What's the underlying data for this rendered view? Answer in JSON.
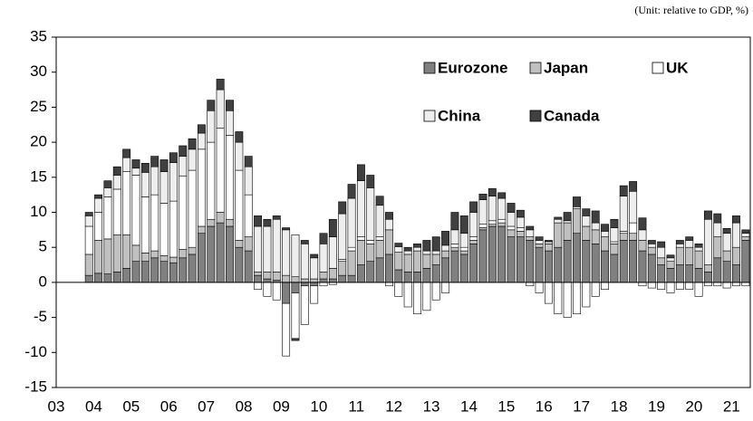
{
  "chart_data": {
    "type": "stacked-bar",
    "unit_note": "(Unit: relative to GDP, %)",
    "categories": [
      null,
      null,
      null,
      null,
      "04",
      null,
      null,
      null,
      "05",
      null,
      null,
      null,
      "06",
      null,
      null,
      null,
      "07",
      null,
      null,
      null,
      "08",
      null,
      null,
      null,
      "09",
      null,
      null,
      null,
      "10",
      null,
      null,
      null,
      "11",
      null,
      null,
      null,
      "12",
      null,
      null,
      null,
      "13",
      null,
      null,
      null,
      "14",
      null,
      null,
      null,
      "15",
      null,
      null,
      null,
      "16",
      null,
      null,
      null,
      "17",
      null,
      null,
      null,
      "18",
      null,
      null,
      null,
      "19",
      null,
      null,
      null,
      "20",
      null,
      null,
      null,
      "21",
      null
    ],
    "x_first_label": "03",
    "series": [
      {
        "name": "Eurozone",
        "color": "#808080",
        "values": [
          null,
          null,
          null,
          1,
          1.3,
          1.2,
          1.5,
          2,
          3,
          3,
          3.5,
          3,
          2.8,
          3.5,
          4,
          7,
          8,
          8.5,
          8,
          5,
          4.5,
          1,
          0.5,
          0.3,
          -3,
          -1.5,
          -0.5,
          -0.5,
          0.5,
          0.5,
          1,
          1,
          2.5,
          3,
          3.5,
          4,
          1.8,
          1.5,
          1.5,
          2,
          2.5,
          3.5,
          4.5,
          4,
          5.5,
          7.5,
          8,
          8,
          6.5,
          6.5,
          6,
          5,
          4.5,
          5,
          6,
          7,
          6,
          5.5,
          4.5,
          4,
          6,
          6,
          4.5,
          4,
          2.5,
          2,
          2.5,
          2.5,
          2,
          1.5,
          3.5,
          3,
          2.5,
          6
        ]
      },
      {
        "name": "Japan",
        "color": "#c0c0c0",
        "values": [
          null,
          null,
          null,
          3,
          4.7,
          5,
          5.3,
          4.8,
          2.3,
          1.2,
          1,
          0.8,
          0.8,
          1.2,
          1,
          1,
          1,
          1.5,
          1,
          1,
          2,
          0.5,
          1,
          1.2,
          1,
          0.8,
          0.5,
          0.5,
          1,
          1.5,
          2,
          3.5,
          3.5,
          2.5,
          2.5,
          3.5,
          2.5,
          2.5,
          3,
          2,
          1.5,
          1,
          0.5,
          0.5,
          0.5,
          0.3,
          0.3,
          0.5,
          1,
          0.8,
          0.5,
          0.5,
          1,
          3.5,
          2.5,
          3.5,
          2,
          2,
          2,
          1.5,
          1,
          1,
          1.5,
          1,
          1,
          1,
          2.5,
          2.5,
          2.5,
          1,
          3,
          1.5,
          2.5,
          0.5
        ]
      },
      {
        "name": "UK",
        "color": "#ffffff",
        "values": [
          null,
          null,
          null,
          4,
          4,
          6,
          6.5,
          9,
          10,
          8,
          8,
          7.5,
          8,
          10.5,
          11,
          11,
          11,
          12,
          12,
          10,
          6,
          -1,
          -2,
          -2.5,
          -7.5,
          -6.5,
          -5.5,
          -2.5,
          -0.5,
          -0.3,
          0.3,
          0.5,
          0.5,
          0.5,
          0.5,
          -0.5,
          -2,
          -3.5,
          -4.5,
          -4,
          -2.5,
          -1.5,
          0.5,
          0.5,
          0.5,
          0.5,
          0.5,
          0.5,
          0.5,
          0.5,
          -0.5,
          -1.5,
          -3,
          -4.5,
          -5,
          -4.5,
          -3.5,
          -2,
          -1,
          0.3,
          0.3,
          1.5,
          -0.5,
          -0.8,
          -1,
          -1.5,
          -1,
          -1,
          -2,
          -0.5,
          -0.5,
          -0.8,
          -0.5,
          -0.5
        ]
      },
      {
        "name": "China",
        "color": "#eeeeee",
        "values": [
          null,
          null,
          null,
          1.5,
          2,
          1.3,
          2,
          2,
          1,
          3.5,
          4,
          4.5,
          5.5,
          2.8,
          3,
          2.3,
          4.5,
          5.5,
          3.5,
          4,
          4,
          6.5,
          6.5,
          7.5,
          6.5,
          6,
          5,
          3,
          4,
          4.5,
          6.5,
          7,
          8,
          7.5,
          4.5,
          1.5,
          0.8,
          0.5,
          0.5,
          0.5,
          0.5,
          0.8,
          2,
          2,
          3.5,
          3.5,
          3.5,
          3,
          2,
          1.5,
          1,
          0.5,
          0.3,
          0.5,
          0.3,
          0.3,
          1.5,
          1,
          0.8,
          2,
          5,
          4.5,
          1.5,
          0.5,
          1.5,
          0.5,
          0.5,
          1,
          0.5,
          6.5,
          2,
          2.5,
          3.5,
          0.5
        ]
      },
      {
        "name": "Canada",
        "color": "#404040",
        "values": [
          null,
          null,
          null,
          0.5,
          0.5,
          1,
          1.2,
          1.2,
          1.2,
          1.3,
          1.5,
          1.7,
          1.4,
          1.5,
          1.5,
          1.2,
          1.5,
          1.5,
          1.5,
          1.5,
          1.5,
          1.5,
          1,
          0.5,
          0.3,
          -0.3,
          0.5,
          0.5,
          1.5,
          2.5,
          1.7,
          2,
          2.3,
          1.8,
          1.3,
          1,
          0.5,
          0.5,
          0.5,
          1.5,
          2,
          2,
          2.5,
          2.5,
          1.5,
          0.8,
          1.1,
          0.8,
          1.3,
          1,
          0.5,
          0.5,
          0.2,
          0.3,
          1.2,
          1.4,
          1,
          1.7,
          1,
          1.2,
          1.5,
          1.4,
          1.7,
          0.5,
          0.8,
          0.4,
          0.5,
          0.5,
          0.5,
          1.2,
          1.3,
          0.7,
          1,
          0.5
        ]
      }
    ],
    "ylim": [
      -15,
      35
    ],
    "yticks": [
      -15,
      -10,
      -5,
      0,
      5,
      10,
      15,
      20,
      25,
      30,
      35
    ]
  }
}
